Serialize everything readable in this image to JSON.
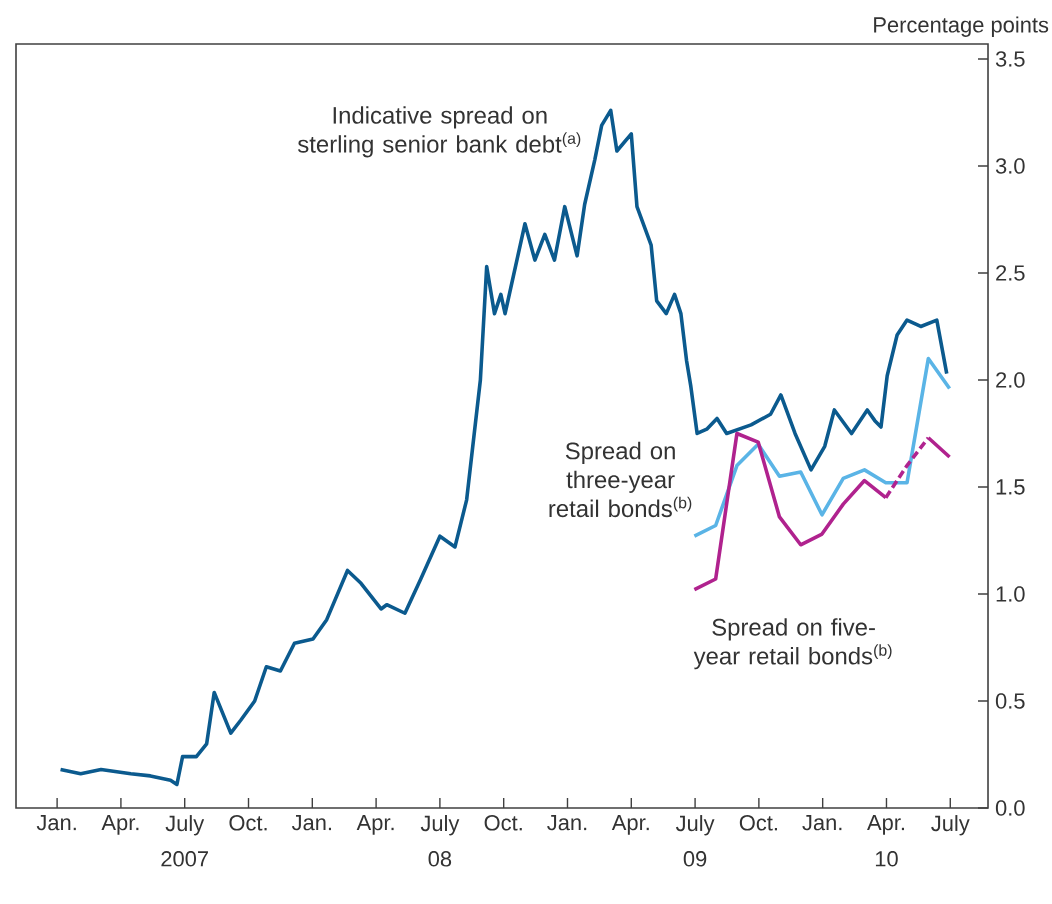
{
  "chart_data": {
    "type": "line",
    "ylabel": "Percentage points",
    "xlim": [
      "2006-11-03",
      "2010-08-25"
    ],
    "ylim": [
      0,
      3.57
    ],
    "xticks": [
      {
        "value": "2007-01-01",
        "label": "Jan."
      },
      {
        "value": "2007-04-01",
        "label": "Apr."
      },
      {
        "value": "2007-07-01",
        "label": "July"
      },
      {
        "value": "2007-10-01",
        "label": "Oct."
      },
      {
        "value": "2008-01-01",
        "label": "Jan."
      },
      {
        "value": "2008-04-01",
        "label": "Apr."
      },
      {
        "value": "2008-07-01",
        "label": "July"
      },
      {
        "value": "2008-10-01",
        "label": "Oct."
      },
      {
        "value": "2009-01-01",
        "label": "Jan."
      },
      {
        "value": "2009-04-01",
        "label": "Apr."
      },
      {
        "value": "2009-07-01",
        "label": "July"
      },
      {
        "value": "2009-10-01",
        "label": "Oct."
      },
      {
        "value": "2010-01-01",
        "label": "Jan."
      },
      {
        "value": "2010-04-01",
        "label": "Apr."
      },
      {
        "value": "2010-07-01",
        "label": "July"
      }
    ],
    "annotations": [
      "2007",
      "08",
      "09",
      "10"
    ],
    "yticks": [
      {
        "value": 0,
        "label": "0.0"
      },
      {
        "value": 0.5,
        "label": "0.5"
      },
      {
        "value": 1,
        "label": "1.0"
      },
      {
        "value": 1.5,
        "label": "1.5"
      },
      {
        "value": 2,
        "label": "2.0"
      },
      {
        "value": 2.5,
        "label": "2.5"
      },
      {
        "value": 3,
        "label": "3.0"
      },
      {
        "value": 3.5,
        "label": "3.5"
      }
    ],
    "grid": false,
    "series": [
      {
        "name": "Indicative spread on sterling senior bank debt$^{(a)}$",
        "color": "#0b5a8e",
        "x": [
          "2007-01-06",
          "2007-02-04",
          "2007-03-03",
          "2007-04-15",
          "2007-05-13",
          "2007-06-11",
          "2007-06-20",
          "2007-06-28",
          "2007-07-18",
          "2007-08-02",
          "2007-08-13",
          "2007-09-06",
          "2007-09-20",
          "2007-10-10",
          "2007-10-27",
          "2007-11-16",
          "2007-12-06",
          "2008-01-02",
          "2008-01-22",
          "2008-02-20",
          "2008-03-10",
          "2008-04-08",
          "2008-04-16",
          "2008-05-12",
          "2008-06-04",
          "2008-07-01",
          "2008-07-23",
          "2008-08-09",
          "2008-08-29",
          "2008-09-07",
          "2008-09-18",
          "2008-09-27",
          "2008-10-03",
          "2008-11-01",
          "2008-11-15",
          "2008-11-29",
          "2008-12-13",
          "2008-12-28",
          "2009-01-15",
          "2009-01-26",
          "2009-02-09",
          "2009-02-18",
          "2009-03-02",
          "2009-03-11",
          "2009-04-01",
          "2009-04-09",
          "2009-04-29",
          "2009-05-07",
          "2009-05-21",
          "2009-06-02",
          "2009-06-11",
          "2009-06-19",
          "2009-06-25",
          "2009-07-04",
          "2009-07-18",
          "2009-08-02",
          "2009-08-16",
          "2009-09-20",
          "2009-10-18",
          "2009-11-02",
          "2009-11-22",
          "2009-12-15",
          "2010-01-04",
          "2010-01-18",
          "2010-02-11",
          "2010-03-04",
          "2010-03-15",
          "2010-03-24",
          "2010-04-02",
          "2010-04-16",
          "2010-04-30",
          "2010-05-20",
          "2010-06-12",
          "2010-06-26"
        ],
        "values": [
          0.18,
          0.16,
          0.18,
          0.16,
          0.15,
          0.13,
          0.11,
          0.24,
          0.24,
          0.3,
          0.54,
          0.35,
          0.41,
          0.5,
          0.66,
          0.64,
          0.77,
          0.79,
          0.88,
          1.11,
          1.05,
          0.93,
          0.95,
          0.91,
          1.07,
          1.27,
          1.22,
          1.44,
          2.0,
          2.53,
          2.31,
          2.4,
          2.31,
          2.73,
          2.56,
          2.68,
          2.56,
          2.81,
          2.58,
          2.82,
          3.03,
          3.19,
          3.26,
          3.07,
          3.15,
          2.81,
          2.63,
          2.37,
          2.31,
          2.4,
          2.31,
          2.09,
          1.97,
          1.75,
          1.77,
          1.82,
          1.75,
          1.79,
          1.84,
          1.93,
          1.75,
          1.58,
          1.69,
          1.86,
          1.75,
          1.86,
          1.81,
          1.78,
          2.02,
          2.21,
          2.28,
          2.25,
          2.28,
          2.03
        ]
      },
      {
        "name": "Spread on three-year retail bonds$^{(b)}$",
        "color": "#5ab4e6",
        "x": [
          "2009-06-30",
          "2009-07-31",
          "2009-08-31",
          "2009-09-30",
          "2009-10-31",
          "2009-11-30",
          "2009-12-31",
          "2010-01-31",
          "2010-02-28",
          "2010-03-31",
          "2010-04-30",
          "2010-05-31",
          "2010-06-30"
        ],
        "values": [
          1.27,
          1.32,
          1.6,
          1.7,
          1.55,
          1.57,
          1.37,
          1.54,
          1.58,
          1.52,
          1.52,
          2.1,
          1.96
        ]
      },
      {
        "name": "Spread on five-year retail bonds$^{(b)}$",
        "color": "#b0228e",
        "x": [
          "2009-06-30",
          "2009-07-31",
          "2009-08-31",
          "2009-09-30",
          "2009-10-31",
          "2009-11-30",
          "2009-12-31",
          "2010-01-31",
          "2010-02-28",
          "2010-03-31",
          "2010-04-30",
          "2010-05-31",
          "2010-06-30"
        ],
        "values": [
          1.02,
          1.07,
          1.75,
          1.71,
          1.36,
          1.23,
          1.28,
          1.42,
          1.53,
          1.45,
          null,
          1.73,
          1.64
        ]
      },
      {
        "color": "#b0238f",
        "line_style": "dashed",
        "x": [
          "2010-03-31",
          "2010-04-30",
          "2010-05-31"
        ],
        "values": [
          1.45,
          1.6,
          1.73
        ]
      }
    ]
  }
}
